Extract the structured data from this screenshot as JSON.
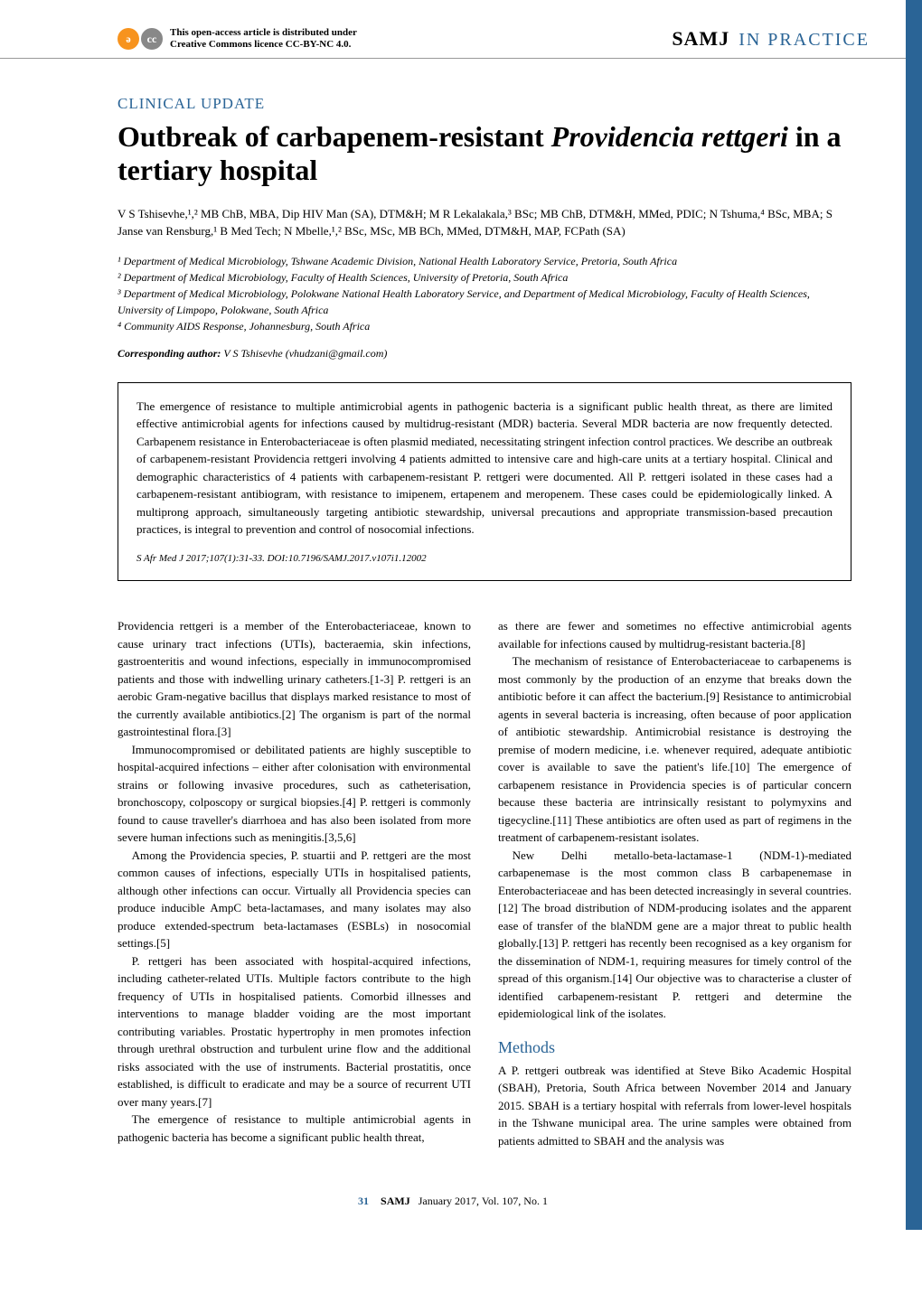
{
  "header": {
    "cc_text_line1": "This open-access article is distributed under",
    "cc_text_line2": "Creative Commons licence CC-BY-NC 4.0.",
    "journal_name": "SAMJ",
    "journal_section": "IN PRACTICE"
  },
  "category": "CLINICAL UPDATE",
  "title_part1": "Outbreak of carbapenem-resistant ",
  "title_italic": "Providencia rettgeri",
  "title_part2": " in a tertiary hospital",
  "authors_html": "V S Tshisevhe,¹,² MB ChB, MBA, Dip HIV Man (SA), DTM&H; M R Lekalakala,³ BSc; MB ChB, DTM&H, MMed, PDIC; N Tshuma,⁴ BSc, MBA; S Janse van Rensburg,¹ B Med Tech; N Mbelle,¹,² BSc, MSc, MB BCh, MMed, DTM&H, MAP, FCPath (SA)",
  "affiliations": {
    "a1": "¹ Department of Medical Microbiology, Tshwane Academic Division, National Health Laboratory Service, Pretoria, South Africa",
    "a2": "² Department of Medical Microbiology, Faculty of Health Sciences, University of Pretoria, South Africa",
    "a3": "³ Department of Medical Microbiology, Polokwane National Health Laboratory Service, and Department of Medical Microbiology, Faculty of Health Sciences, University of Limpopo, Polokwane, South Africa",
    "a4": "⁴ Community AIDS Response, Johannesburg, South Africa"
  },
  "corresponding_label": "Corresponding author:",
  "corresponding_value": " V S Tshisevhe (vhudzani@gmail.com)",
  "abstract": "The emergence of resistance to multiple antimicrobial agents in pathogenic bacteria is a significant public health threat, as there are limited effective antimicrobial agents for infections caused by multidrug-resistant (MDR) bacteria. Several MDR bacteria are now frequently detected. Carbapenem resistance in Enterobacteriaceae is often plasmid mediated, necessitating stringent infection control practices. We describe an outbreak of carbapenem-resistant Providencia rettgeri involving 4 patients admitted to intensive care and high-care units at a tertiary hospital. Clinical and demographic characteristics of 4 patients with carbapenem-resistant P. rettgeri were documented. All P. rettgeri isolated in these cases had a carbapenem-resistant antibiogram, with resistance to imipenem, ertapenem and meropenem. These cases could be epidemiologically linked. A multiprong approach, simultaneously targeting antibiotic stewardship, universal precautions and appropriate transmission-based precaution practices, is integral to prevention and control of nosocomial infections.",
  "citation": "S Afr Med J 2017;107(1):31-33. DOI:10.7196/SAMJ.2017.v107i1.12002",
  "col1": {
    "p1": "Providencia rettgeri is a member of the Enterobacteriaceae, known to cause urinary tract infections (UTIs), bacteraemia, skin infections, gastroenteritis and wound infections, especially in immunocompromised patients and those with indwelling urinary catheters.[1-3] P. rettgeri is an aerobic Gram-negative bacillus that displays marked resistance to most of the currently available antibiotics.[2] The organism is part of the normal gastrointestinal flora.[3]",
    "p2": "Immunocompromised or debilitated patients are highly susceptible to hospital-acquired infections – either after colonisation with environmental strains or following invasive procedures, such as catheterisation, bronchoscopy, colposcopy or surgical biopsies.[4] P. rettgeri is commonly found to cause traveller's diarrhoea and has also been isolated from more severe human infections such as meningitis.[3,5,6]",
    "p3": "Among the Providencia species, P. stuartii and P. rettgeri are the most common causes of infections, especially UTIs in hospitalised patients, although other infections can occur. Virtually all Providencia species can produce inducible AmpC beta-lactamases, and many isolates may also produce extended-spectrum beta-lactamases (ESBLs) in nosocomial settings.[5]",
    "p4": "P. rettgeri has been associated with hospital-acquired infections, including catheter-related UTIs. Multiple factors contribute to the high frequency of UTIs in hospitalised patients. Comorbid illnesses and interventions to manage bladder voiding are the most important contributing variables. Prostatic hypertrophy in men promotes infection through urethral obstruction and turbulent urine flow and the additional risks associated with the use of instruments. Bacterial prostatitis, once established, is difficult to eradicate and may be a source of recurrent UTI over many years.[7]",
    "p5": "The emergence of resistance to multiple antimicrobial agents in pathogenic bacteria has become a significant public health threat,"
  },
  "col2": {
    "p1": "as there are fewer and sometimes no effective antimicrobial agents available for infections caused by multidrug-resistant bacteria.[8]",
    "p2": "The mechanism of resistance of Enterobacteriaceae to carbapenems is most commonly by the production of an enzyme that breaks down the antibiotic before it can affect the bacterium.[9] Resistance to antimicrobial agents in several bacteria is increasing, often because of poor application of antibiotic stewardship. Antimicrobial resistance is destroying the premise of modern medicine, i.e. whenever required, adequate antibiotic cover is available to save the patient's life.[10] The emergence of carbapenem resistance in Providencia species is of particular concern because these bacteria are intrinsically resistant to polymyxins and tigecycline.[11] These antibiotics are often used as part of regimens in the treatment of carbapenem-resistant isolates.",
    "p3": "New Delhi metallo-beta-lactamase-1 (NDM-1)-mediated carbapenemase is the most common class B carbapenemase in Enterobacteriaceae and has been detected increasingly in several countries.[12] The broad distribution of NDM-producing isolates and the apparent ease of transfer of the blaNDM gene are a major threat to public health globally.[13] P. rettgeri has recently been recognised as a key organism for the dissemination of NDM-1, requiring measures for timely control of the spread of this organism.[14] Our objective was to characterise a cluster of identified carbapenem-resistant P. rettgeri and determine the epidemiological link of the isolates.",
    "methods_h": "Methods",
    "p4": "A P. rettgeri outbreak was identified at Steve Biko Academic Hospital (SBAH), Pretoria, South Africa between November 2014 and January 2015. SBAH is a tertiary hospital with referrals from lower-level hospitals in the Tshwane municipal area. The urine samples were obtained from patients admitted to SBAH and the analysis was"
  },
  "footer": {
    "page": "31",
    "journal": "SAMJ",
    "date": "January 2017, Vol. 107, No. 1"
  },
  "colors": {
    "accent": "#2a6496",
    "cc_orange": "#f7931e"
  }
}
